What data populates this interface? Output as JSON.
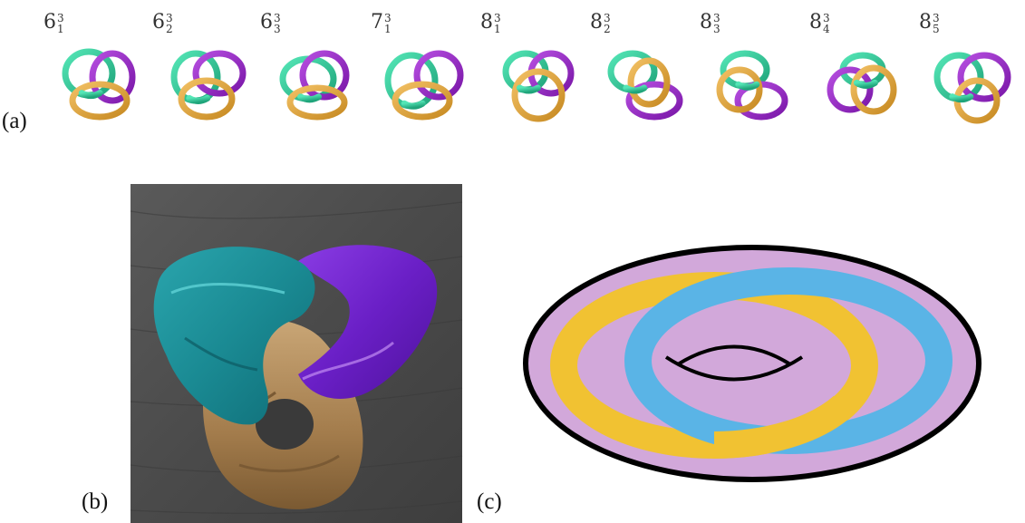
{
  "figure": {
    "panel_a_label": "(a)",
    "panel_b_label": "(b)",
    "panel_c_label": "(c)",
    "knots": [
      {
        "base": "6",
        "sup": "3",
        "sub": "1"
      },
      {
        "base": "6",
        "sup": "3",
        "sub": "2"
      },
      {
        "base": "6",
        "sup": "3",
        "sub": "3"
      },
      {
        "base": "7",
        "sup": "3",
        "sub": "1"
      },
      {
        "base": "8",
        "sup": "3",
        "sub": "1"
      },
      {
        "base": "8",
        "sup": "3",
        "sub": "2"
      },
      {
        "base": "8",
        "sup": "3",
        "sub": "3"
      },
      {
        "base": "8",
        "sup": "3",
        "sub": "4"
      },
      {
        "base": "8",
        "sup": "3",
        "sub": "5"
      }
    ]
  },
  "colors": {
    "green": "#2fcf9b",
    "purple": "#9a28c9",
    "orange": "#e0a035",
    "torus_pink": "#d2a8da",
    "band_yellow": "#f1c232",
    "band_blue": "#5ab4e6",
    "scarf_teal": "#1e8f98",
    "scarf_purple": "#6a1fc6",
    "scarf_tan": "#b08a5a",
    "floor": "#4e4e4e"
  }
}
